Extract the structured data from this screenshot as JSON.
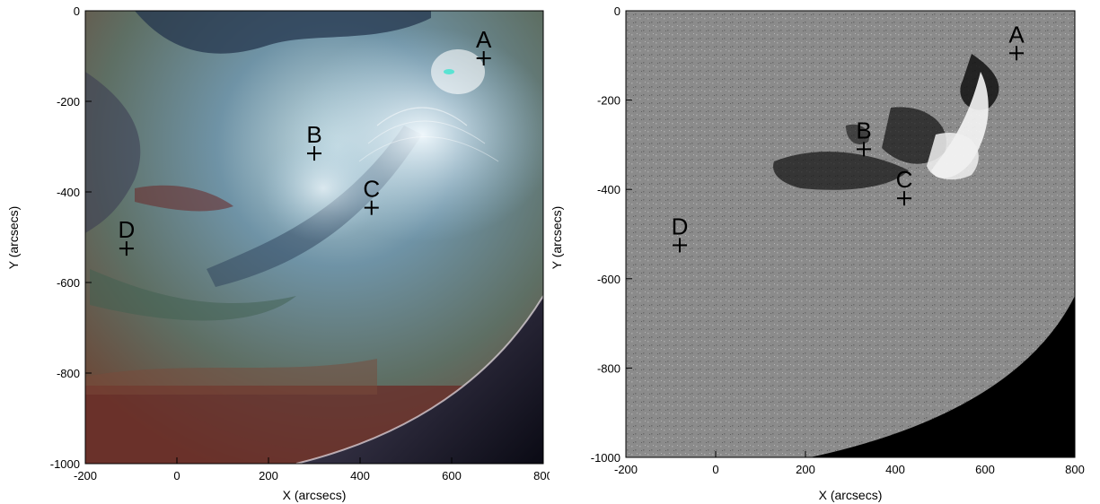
{
  "figure": {
    "x_axis_title": "X (arcsecs)",
    "y_axis_title": "Y (arcsecs)",
    "x_ticks": [
      "-200",
      "0",
      "200",
      "400",
      "600",
      "800"
    ],
    "y_ticks": [
      "0",
      "-200",
      "-400",
      "-600",
      "-800",
      "-1000"
    ]
  },
  "panels": [
    {
      "name": "composite-euv",
      "xlim": [
        -200,
        800
      ],
      "ylim": [
        -1000,
        0
      ],
      "points": [
        {
          "label": "A",
          "x": 670,
          "y": -105
        },
        {
          "label": "B",
          "x": 300,
          "y": -315
        },
        {
          "label": "C",
          "x": 425,
          "y": -435
        },
        {
          "label": "D",
          "x": -110,
          "y": -525
        }
      ]
    },
    {
      "name": "magnetogram",
      "xlim": [
        -200,
        800
      ],
      "ylim": [
        -1000,
        0
      ],
      "points": [
        {
          "label": "A",
          "x": 670,
          "y": -95
        },
        {
          "label": "B",
          "x": 330,
          "y": -310
        },
        {
          "label": "C",
          "x": 420,
          "y": -420
        },
        {
          "label": "D",
          "x": -80,
          "y": -525
        }
      ]
    }
  ],
  "colors": {
    "marker": "#000000",
    "limb_dark": "#000000",
    "mag_gray": "#8a8a8a"
  }
}
